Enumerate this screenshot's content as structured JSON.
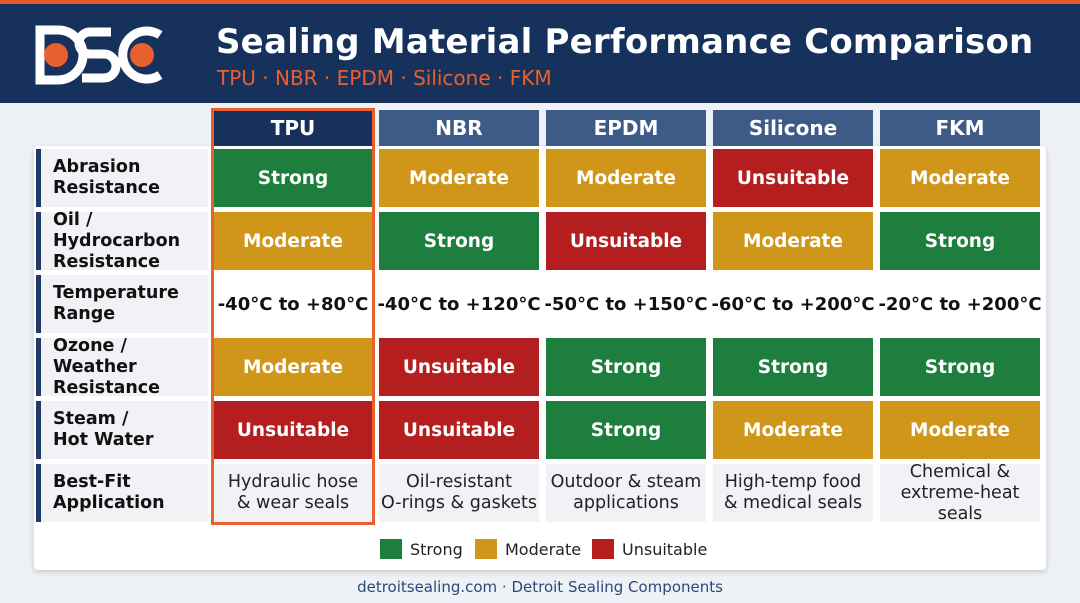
{
  "header": {
    "logo_text": "DSC",
    "title": "Sealing Material Performance Comparison",
    "subtitle": "TPU · NBR · EPDM · Silicone · FKM"
  },
  "table": {
    "columns": [
      "TPU",
      "NBR",
      "EPDM",
      "Silicone",
      "FKM"
    ],
    "highlighted_column": "TPU",
    "rows": [
      {
        "label": "Abrasion\nResistance",
        "kind": "rating",
        "cells": [
          "Strong",
          "Moderate",
          "Moderate",
          "Unsuitable",
          "Moderate"
        ]
      },
      {
        "label": "Oil / Hydrocarbon\nResistance",
        "kind": "rating",
        "cells": [
          "Moderate",
          "Strong",
          "Unsuitable",
          "Moderate",
          "Strong"
        ]
      },
      {
        "label": "Temperature\nRange",
        "kind": "temp",
        "cells": [
          "-40°C to +80°C",
          "-40°C to +120°C",
          "-50°C to +150°C",
          "-60°C to +200°C",
          "-20°C to +200°C"
        ]
      },
      {
        "label": "Ozone / Weather\nResistance",
        "kind": "rating",
        "cells": [
          "Moderate",
          "Unsuitable",
          "Strong",
          "Strong",
          "Strong"
        ]
      },
      {
        "label": "Steam /\nHot Water",
        "kind": "rating",
        "cells": [
          "Unsuitable",
          "Unsuitable",
          "Strong",
          "Moderate",
          "Moderate"
        ]
      },
      {
        "label": "Best-Fit\nApplication",
        "kind": "app",
        "cells": [
          "Hydraulic hose\n& wear seals",
          "Oil-resistant\nO-rings & gaskets",
          "Outdoor & steam\napplications",
          "High-temp food\n& medical seals",
          "Chemical &\nextreme-heat seals"
        ]
      }
    ]
  },
  "legend": [
    {
      "label": "Strong",
      "color": "#1e7e3e"
    },
    {
      "label": "Moderate",
      "color": "#cf9619"
    },
    {
      "label": "Unsuitable",
      "color": "#b41e1e"
    }
  ],
  "colors": {
    "header_bg": "#15315c",
    "accent": "#e8602e",
    "column_header": "#3e5a86"
  },
  "footer": "detroitsealing.com · Detroit Sealing Components"
}
